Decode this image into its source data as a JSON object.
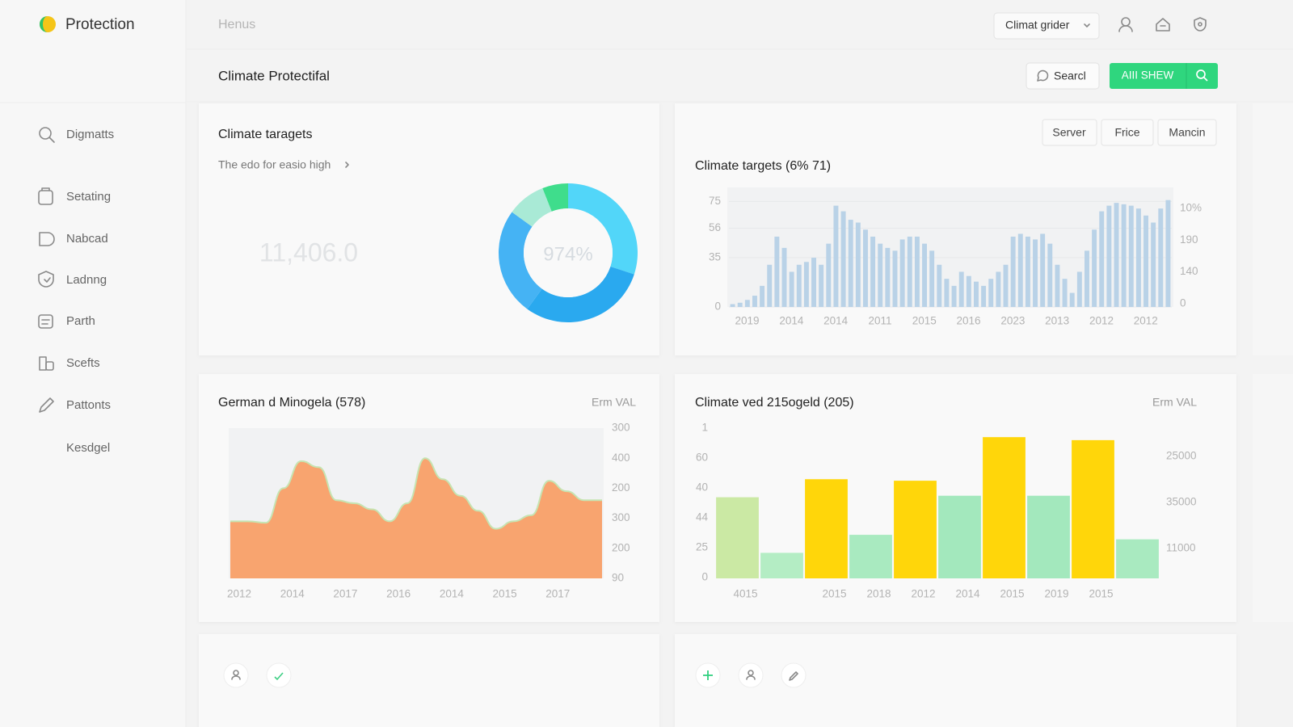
{
  "sidebar": {
    "brand": "Protection",
    "menu": [
      "Digmatts",
      "Setating",
      "Nabcad",
      "Ladnng",
      "Parth",
      "Scefts",
      "Pattonts",
      "Kesdgel"
    ]
  },
  "header": {
    "breadcrumb": "Henus",
    "dropdown": "Climat grider",
    "page_title": "Climate Protectifal",
    "search": "Searcl",
    "action": "AIII SHEW"
  },
  "panel_buttons": [
    "Server",
    "Frice",
    "Mancin"
  ],
  "chart_data": [
    {
      "type": "pie",
      "title": "Climate taragets",
      "subtitle": "The edo for easio high",
      "big_number": "11,406.0",
      "center_label": "974%",
      "values": [
        30,
        30,
        25,
        9,
        6
      ],
      "colors": [
        "#52d6f9",
        "#2aa9ef",
        "#45b3f4",
        "#a9ead6",
        "#3fdd8c"
      ]
    },
    {
      "type": "bar",
      "title": "Climate targets (6% 71)",
      "color": "#b9d2e7",
      "ylim": [
        0,
        85
      ],
      "yticks": [
        0,
        35,
        56,
        75
      ],
      "grid": true,
      "y2_labels": [
        "10%",
        "190",
        "140",
        "0"
      ],
      "categories": [
        "2019",
        null,
        null,
        null,
        null,
        null,
        "2014",
        null,
        null,
        null,
        null,
        null,
        "2014",
        null,
        null,
        null,
        null,
        null,
        "2011",
        null,
        null,
        null,
        null,
        null,
        "2015",
        null,
        null,
        null,
        null,
        null,
        "2016",
        null,
        null,
        null,
        null,
        null,
        "2023",
        null,
        null,
        null,
        null,
        null,
        "2013",
        null,
        null,
        null,
        null,
        null,
        "2012",
        null,
        null,
        null,
        null,
        null,
        "2012",
        null,
        null,
        null,
        null,
        null
      ],
      "values": [
        2,
        3,
        5,
        8,
        15,
        30,
        50,
        42,
        25,
        30,
        32,
        35,
        30,
        45,
        72,
        68,
        62,
        60,
        55,
        50,
        45,
        42,
        40,
        48,
        50,
        50,
        45,
        40,
        30,
        20,
        15,
        25,
        22,
        18,
        15,
        20,
        25,
        30,
        50,
        52,
        50,
        48,
        52,
        45,
        30,
        20,
        10,
        25,
        40,
        55,
        68,
        72,
        74,
        73,
        72,
        70,
        65,
        60,
        70,
        76
      ]
    },
    {
      "type": "area",
      "title": "German d Minogela (578)",
      "axis_title": "Erm VAL",
      "color": "#f8a46f",
      "line_color": "#c6e4b2",
      "ylim": [
        0,
        100
      ],
      "y2_labels": [
        "300",
        "400",
        "200",
        "300",
        "200",
        "90"
      ],
      "categories": [
        "2012",
        null,
        null,
        "2014",
        null,
        null,
        "2017",
        null,
        null,
        "2016",
        null,
        null,
        "2014",
        null,
        null,
        "2015",
        null,
        null,
        "2017",
        null,
        null,
        null
      ],
      "values": [
        38,
        38,
        37,
        60,
        78,
        74,
        52,
        50,
        46,
        38,
        50,
        80,
        66,
        55,
        45,
        33,
        38,
        42,
        65,
        58,
        52,
        52
      ]
    },
    {
      "type": "bar",
      "title": "Climate ved 215ogeld (205)",
      "axis_title": "Erm VAL",
      "ylim": [
        0,
        100
      ],
      "y_labels": [
        "1",
        "60",
        "40",
        "44",
        "25",
        "0"
      ],
      "y2_labels": [
        "25000",
        "35000",
        "11000"
      ],
      "categories": [
        "4015",
        null,
        "2015",
        "2018",
        "2012",
        "2014",
        "2015",
        "2019",
        "2015",
        null
      ],
      "values": [
        54,
        17,
        66,
        29,
        65,
        55,
        94,
        55,
        92,
        26
      ],
      "colors": [
        "#cbe9a4",
        "#b4edc4",
        "#ffd60a",
        "#a9eac0",
        "#ffd60a",
        "#a3e8bd",
        "#ffd60a",
        "#a3e8bd",
        "#ffd60a",
        "#a9eac0"
      ]
    }
  ]
}
